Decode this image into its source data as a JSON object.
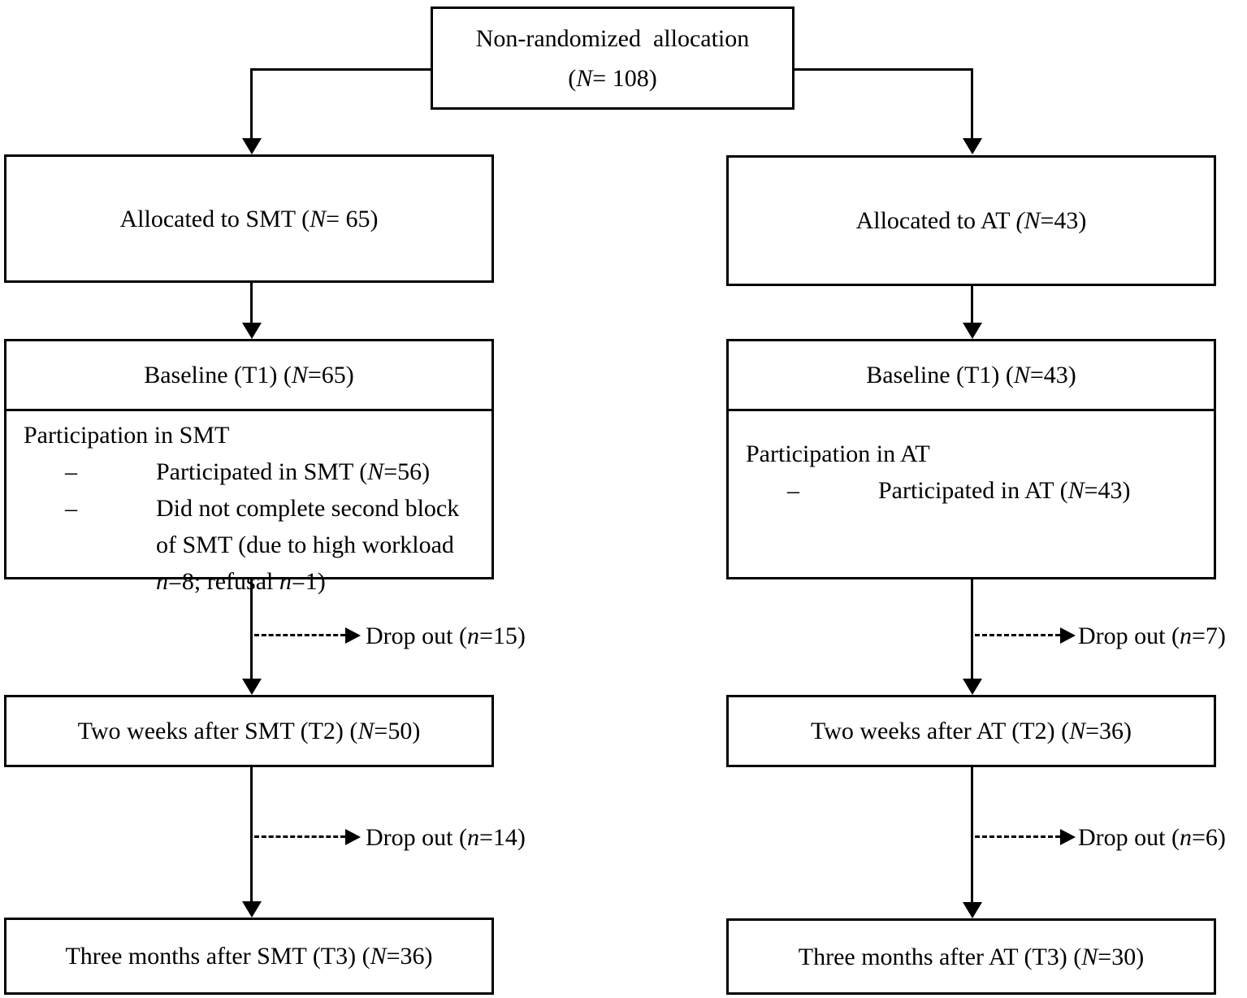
{
  "figure": {
    "background_color": "#ffffff",
    "line_color": "#000000",
    "top_box": {
      "lines": [
        [
          {
            "t": "Non-randomized  allocation"
          }
        ],
        [
          {
            "t": "("
          },
          {
            "t": "N",
            "i": true
          },
          {
            "t": "= 108)"
          }
        ]
      ]
    },
    "left_column": {
      "group": "SMT",
      "allocated": [
        {
          "t": "Allocated to SMT ("
        },
        {
          "t": "N",
          "i": true
        },
        {
          "t": "= 65)"
        }
      ],
      "baseline_header": [
        {
          "t": "Baseline (T1) ("
        },
        {
          "t": "N",
          "i": true
        },
        {
          "t": "=65)"
        }
      ],
      "participation_title": [
        {
          "t": "Participation in SMT"
        }
      ],
      "participation_bullets": [
        {
          "marker": "–",
          "segments": [
            {
              "t": "Participated in SMT ("
            },
            {
              "t": "N",
              "i": true
            },
            {
              "t": "=56)"
            }
          ]
        },
        {
          "marker": "–",
          "segments": [
            {
              "t": "Did not complete second block of SMT (due to high workload "
            },
            {
              "t": "n",
              "i": true
            },
            {
              "t": "=8; refusal "
            },
            {
              "t": "n",
              "i": true
            },
            {
              "t": "=1)"
            }
          ]
        }
      ],
      "dropout_1": [
        {
          "t": "Drop out ("
        },
        {
          "t": "n",
          "i": true
        },
        {
          "t": "=15)"
        }
      ],
      "two_weeks": [
        {
          "t": "Two weeks after SMT (T2) ("
        },
        {
          "t": "N",
          "i": true
        },
        {
          "t": "=50)"
        }
      ],
      "dropout_2": [
        {
          "t": "Drop out ("
        },
        {
          "t": "n",
          "i": true
        },
        {
          "t": "=14)"
        }
      ],
      "three_months": [
        {
          "t": "Three months after SMT (T3) ("
        },
        {
          "t": "N",
          "i": true
        },
        {
          "t": "=36)"
        }
      ]
    },
    "right_column": {
      "group": "AT",
      "allocated": [
        {
          "t": "Allocated to AT "
        },
        {
          "t": "(N",
          "i": true
        },
        {
          "t": "=43)"
        }
      ],
      "baseline_header": [
        {
          "t": "Baseline (T1) ("
        },
        {
          "t": "N",
          "i": true
        },
        {
          "t": "=43)"
        }
      ],
      "participation_title": [
        {
          "t": "Participation in AT"
        }
      ],
      "participation_bullets": [
        {
          "marker": "–",
          "segments": [
            {
              "t": "Participated in AT ("
            },
            {
              "t": "N",
              "i": true
            },
            {
              "t": "=43)"
            }
          ]
        }
      ],
      "dropout_1": [
        {
          "t": "Drop out ("
        },
        {
          "t": "n",
          "i": true
        },
        {
          "t": "=7)"
        }
      ],
      "two_weeks": [
        {
          "t": "Two weeks after AT (T2) ("
        },
        {
          "t": "N",
          "i": true
        },
        {
          "t": "=36)"
        }
      ],
      "dropout_2": [
        {
          "t": "Drop out ("
        },
        {
          "t": "n",
          "i": true
        },
        {
          "t": "=6)"
        }
      ],
      "three_months": [
        {
          "t": "Three months after AT (T3) ("
        },
        {
          "t": "N",
          "i": true
        },
        {
          "t": "=30)"
        }
      ]
    }
  }
}
